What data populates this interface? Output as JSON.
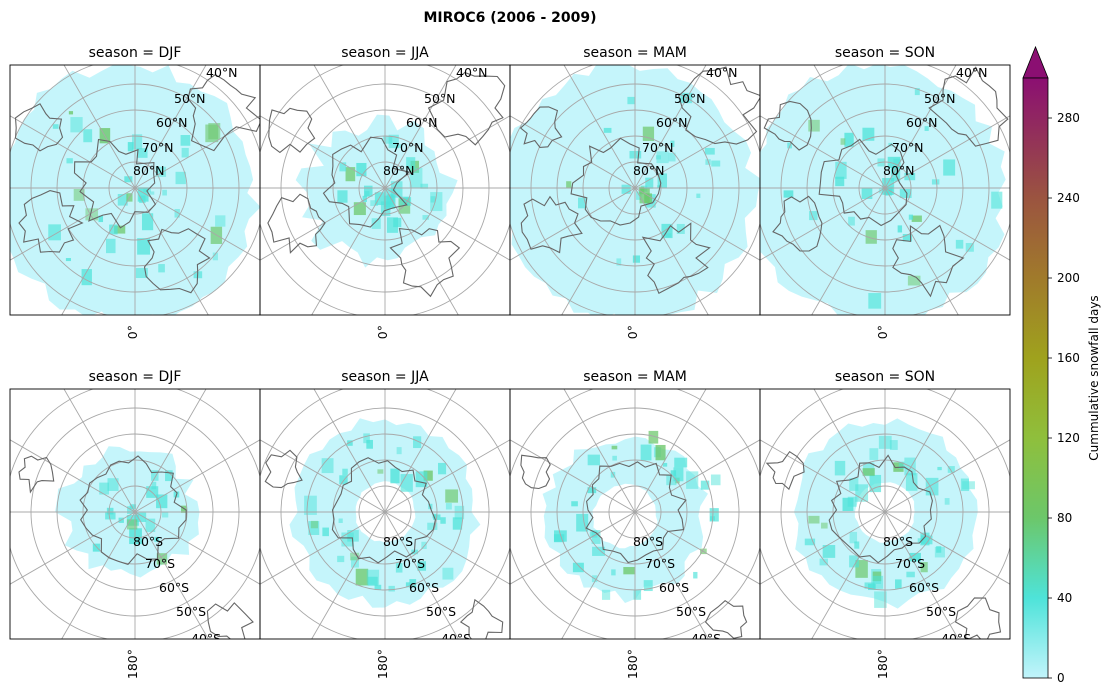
{
  "figure": {
    "title": "MIROC6 (2006 - 2009)"
  },
  "rows": [
    {
      "hemisphere": "north",
      "meridian_label": "0°",
      "lat_labels": [
        "40°N",
        "50°N",
        "60°N",
        "70°N",
        "80°N"
      ],
      "panels": [
        {
          "title": "season = DJF",
          "extent": "wide",
          "intensity": 0.45
        },
        {
          "title": "season = JJA",
          "extent": "small",
          "intensity": 0.35
        },
        {
          "title": "season = MAM",
          "extent": "wide",
          "intensity": 0.35
        },
        {
          "title": "season = SON",
          "extent": "wide",
          "intensity": 0.4
        }
      ]
    },
    {
      "hemisphere": "south",
      "meridian_label": "180°",
      "lat_labels": [
        "40°S",
        "50°S",
        "60°S",
        "70°S",
        "80°S"
      ],
      "panels": [
        {
          "title": "season = DJF",
          "extent": "small",
          "intensity": 0.25
        },
        {
          "title": "season = JJA",
          "extent": "ring",
          "intensity": 0.5
        },
        {
          "title": "season = MAM",
          "extent": "ring-small",
          "intensity": 0.4
        },
        {
          "title": "season = SON",
          "extent": "ring",
          "intensity": 0.5
        }
      ]
    }
  ],
  "colorbar": {
    "label": "Cummulative snowfall days",
    "min": 0,
    "max": 300,
    "ticks": [
      0,
      40,
      80,
      120,
      160,
      200,
      240,
      280
    ],
    "extend": "max",
    "colors": {
      "low": "#c2f4fb",
      "c40": "#4ee3d9",
      "c80": "#6cc76a",
      "c120": "#8fbf3c",
      "c160": "#9fa21d",
      "c200": "#a07a2b",
      "c240": "#9b5440",
      "high": "#8b0f72"
    }
  },
  "style": {
    "grid_color": "#a8a8a8",
    "coast_color": "#666666",
    "frame_color": "#000000"
  }
}
